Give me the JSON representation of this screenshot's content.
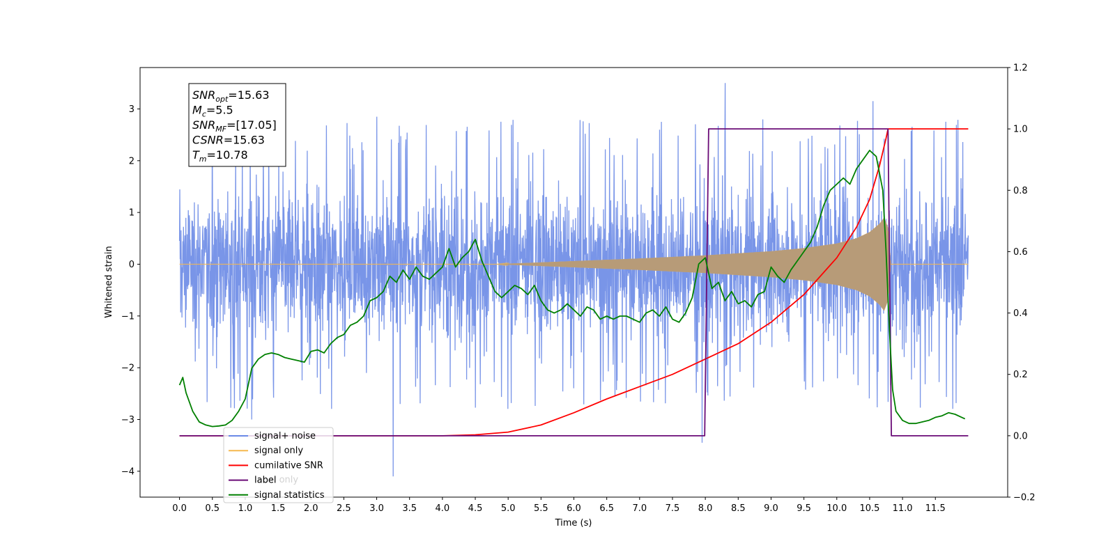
{
  "chart_data": {
    "type": "line",
    "xlabel": "Time (s)",
    "ylabel_left": "Whitened strain",
    "ylabel_right": "",
    "x_range": [
      -0.6,
      12.6
    ],
    "y_left_range": [
      -4.5,
      3.8
    ],
    "y_right_range": [
      -0.2,
      1.2
    ],
    "x_ticks": [
      "0.0",
      "0.5",
      "1.0",
      "1.5",
      "2.0",
      "2.5",
      "3.0",
      "3.5",
      "4.0",
      "4.5",
      "5.0",
      "5.5",
      "6.0",
      "6.5",
      "7.0",
      "7.5",
      "8.0",
      "8.5",
      "9.0",
      "9.5",
      "10.0",
      "10.5",
      "11.0",
      "11.5"
    ],
    "y_left_ticks": [
      "−4",
      "−3",
      "−2",
      "−1",
      "0",
      "1",
      "2",
      "3"
    ],
    "y_right_ticks": [
      "−0.2",
      "0.0",
      "0.2",
      "0.4",
      "0.6",
      "0.8",
      "1.0",
      "1.2"
    ],
    "annotation": {
      "lines": [
        {
          "main": "SNR",
          "sub": "opt",
          "rest": "=15.63"
        },
        {
          "main": "M",
          "sub": "c",
          "rest": "=5.5"
        },
        {
          "main": "SNR",
          "sub": "MF",
          "rest": "=[17.05]"
        },
        {
          "main": "CSNR",
          "sub": "",
          "rest": "=15.63"
        },
        {
          "main": "T",
          "sub": "m",
          "rest": "=10.78"
        }
      ]
    },
    "legend": {
      "placement": "lower-left",
      "entries": [
        {
          "label": "signal+ noise",
          "color": "#6a89e6"
        },
        {
          "label": "signal only",
          "color": "#f5b94f"
        },
        {
          "label": "cumilative SNR",
          "color": "#ff0000"
        },
        {
          "label": "label",
          "color": "#6a0b77"
        },
        {
          "label": "signal statistics",
          "color": "#008000"
        }
      ],
      "occluded_label": "label only"
    },
    "series": [
      {
        "name": "signal+ noise",
        "axis": "left",
        "color": "#6a89e6",
        "description": "whitened noisy strain, dense oscillation between roughly -2 and 2.5 from 0.0 to 12.0 s",
        "envelope": {
          "low": -1.9,
          "high": 2.3,
          "t_start": 0.0,
          "t_end": 12.0
        },
        "spikes": [
          [
            1.1,
            -3.0
          ],
          [
            3.25,
            -4.1
          ],
          [
            3.0,
            2.85
          ],
          [
            8.3,
            3.5
          ],
          [
            7.95,
            -3.45
          ],
          [
            10.55,
            3.15
          ]
        ]
      },
      {
        "name": "signal only",
        "axis": "left",
        "color": "#f5b94f",
        "description": "chirp signal with amplitude growing from 4.8 s to merger near 10.78 s",
        "amplitude_points": [
          [
            4.8,
            0.0
          ],
          [
            6.0,
            0.06
          ],
          [
            7.0,
            0.11
          ],
          [
            8.0,
            0.17
          ],
          [
            9.0,
            0.25
          ],
          [
            9.5,
            0.31
          ],
          [
            10.0,
            0.4
          ],
          [
            10.3,
            0.5
          ],
          [
            10.5,
            0.62
          ],
          [
            10.65,
            0.78
          ],
          [
            10.72,
            0.9
          ],
          [
            10.78,
            0.7
          ],
          [
            10.82,
            0.0
          ]
        ]
      },
      {
        "name": "cumilative SNR",
        "axis": "right",
        "color": "#ff0000",
        "x": [
          0.0,
          4.0,
          4.5,
          5.0,
          5.5,
          6.0,
          6.5,
          7.0,
          7.5,
          8.0,
          8.5,
          9.0,
          9.5,
          10.0,
          10.3,
          10.5,
          10.65,
          10.75,
          10.78,
          12.0
        ],
        "y": [
          0.0,
          0.0,
          0.003,
          0.012,
          0.035,
          0.075,
          0.12,
          0.16,
          0.2,
          0.25,
          0.3,
          0.37,
          0.46,
          0.58,
          0.68,
          0.77,
          0.88,
          0.97,
          1.0,
          1.0
        ]
      },
      {
        "name": "label",
        "axis": "right",
        "color": "#6a0b77",
        "x": [
          0.0,
          7.99,
          8.05,
          10.78,
          10.83,
          12.0
        ],
        "y": [
          0.0,
          0.0,
          1.0,
          1.0,
          0.0,
          0.0
        ]
      },
      {
        "name": "signal statistics",
        "axis": "right",
        "color": "#008000",
        "x": [
          0.0,
          0.05,
          0.1,
          0.2,
          0.3,
          0.4,
          0.5,
          0.6,
          0.7,
          0.8,
          0.9,
          1.0,
          1.1,
          1.2,
          1.3,
          1.4,
          1.5,
          1.6,
          1.7,
          1.8,
          1.9,
          2.0,
          2.1,
          2.2,
          2.3,
          2.4,
          2.5,
          2.6,
          2.7,
          2.8,
          2.9,
          3.0,
          3.1,
          3.2,
          3.3,
          3.4,
          3.5,
          3.6,
          3.7,
          3.8,
          3.9,
          4.0,
          4.1,
          4.2,
          4.3,
          4.4,
          4.5,
          4.6,
          4.7,
          4.8,
          4.9,
          5.0,
          5.1,
          5.2,
          5.3,
          5.4,
          5.5,
          5.6,
          5.7,
          5.8,
          5.9,
          6.0,
          6.1,
          6.2,
          6.3,
          6.4,
          6.5,
          6.6,
          6.7,
          6.8,
          6.9,
          7.0,
          7.1,
          7.2,
          7.3,
          7.4,
          7.5,
          7.6,
          7.7,
          7.8,
          7.9,
          8.0,
          8.1,
          8.2,
          8.3,
          8.4,
          8.5,
          8.6,
          8.7,
          8.8,
          8.9,
          9.0,
          9.1,
          9.2,
          9.3,
          9.4,
          9.5,
          9.6,
          9.7,
          9.8,
          9.9,
          10.0,
          10.1,
          10.2,
          10.3,
          10.4,
          10.5,
          10.6,
          10.7,
          10.75,
          10.8,
          10.85,
          10.9,
          11.0,
          11.1,
          11.2,
          11.3,
          11.4,
          11.5,
          11.6,
          11.7,
          11.8,
          11.9,
          11.95
        ],
        "y": [
          0.165,
          0.19,
          0.14,
          0.08,
          0.045,
          0.035,
          0.03,
          0.032,
          0.035,
          0.05,
          0.08,
          0.12,
          0.22,
          0.25,
          0.265,
          0.27,
          0.265,
          0.255,
          0.25,
          0.245,
          0.24,
          0.275,
          0.28,
          0.27,
          0.3,
          0.32,
          0.33,
          0.36,
          0.37,
          0.39,
          0.44,
          0.45,
          0.47,
          0.52,
          0.5,
          0.54,
          0.51,
          0.55,
          0.52,
          0.51,
          0.53,
          0.55,
          0.61,
          0.55,
          0.58,
          0.6,
          0.64,
          0.57,
          0.52,
          0.47,
          0.45,
          0.47,
          0.49,
          0.48,
          0.46,
          0.49,
          0.44,
          0.41,
          0.4,
          0.41,
          0.43,
          0.41,
          0.39,
          0.42,
          0.41,
          0.38,
          0.39,
          0.38,
          0.39,
          0.39,
          0.38,
          0.37,
          0.4,
          0.41,
          0.39,
          0.42,
          0.38,
          0.37,
          0.4,
          0.45,
          0.56,
          0.58,
          0.48,
          0.5,
          0.44,
          0.47,
          0.43,
          0.44,
          0.42,
          0.46,
          0.47,
          0.55,
          0.52,
          0.5,
          0.54,
          0.57,
          0.6,
          0.63,
          0.68,
          0.75,
          0.8,
          0.82,
          0.84,
          0.82,
          0.87,
          0.9,
          0.93,
          0.91,
          0.8,
          0.6,
          0.35,
          0.15,
          0.08,
          0.05,
          0.04,
          0.04,
          0.045,
          0.05,
          0.06,
          0.065,
          0.075,
          0.07,
          0.06,
          0.055
        ]
      }
    ]
  }
}
